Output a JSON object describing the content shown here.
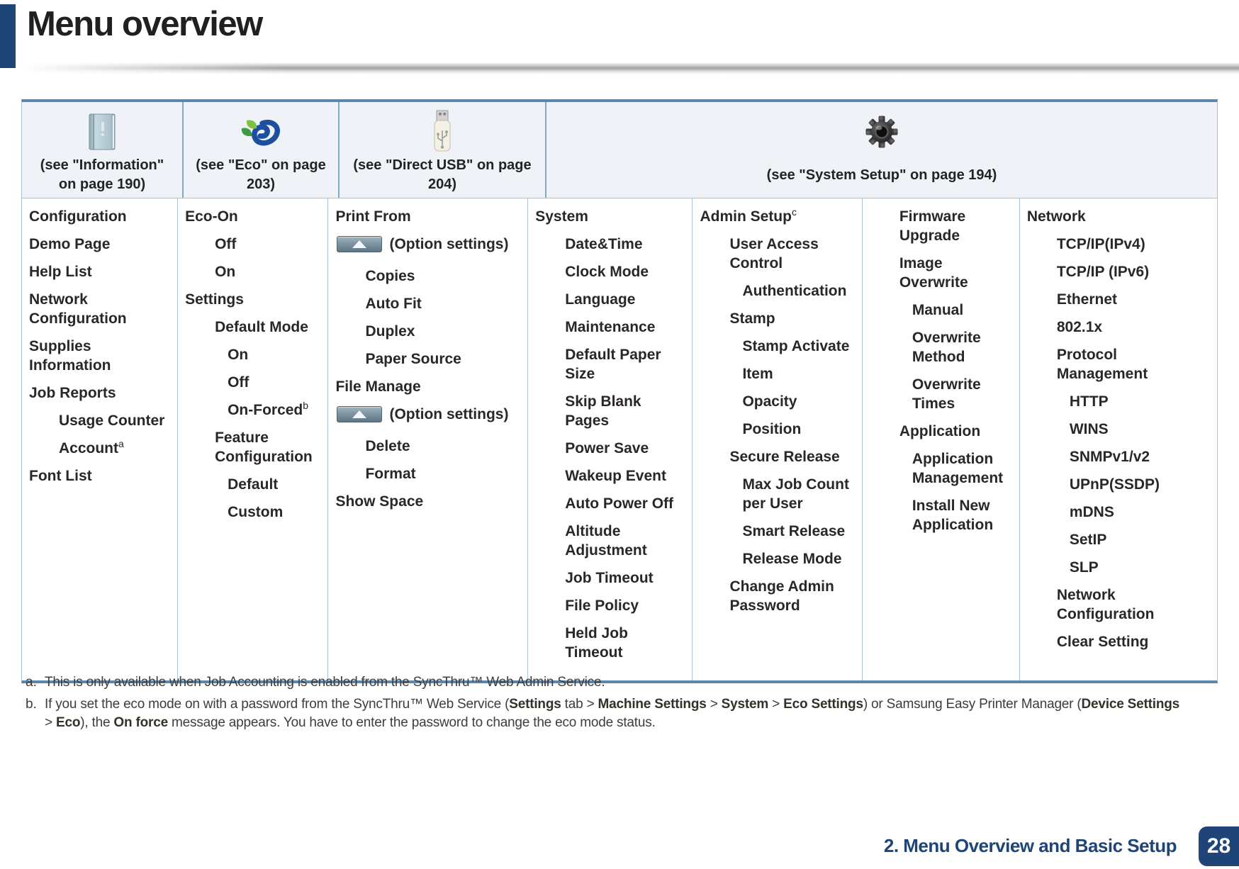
{
  "page": {
    "title": "Menu overview",
    "footer": {
      "chapter_label": "2. Menu Overview and Basic Setup",
      "page_number": "28"
    },
    "colors": {
      "accent_navy": "#1e4478",
      "table_border_blue": "#5b87ad",
      "divider_blue": "#aac3d6",
      "header_bg": "#eff3f7",
      "eco_green": "#7cc242",
      "eco_blue": "#1d4f9e"
    }
  },
  "table": {
    "headers": [
      {
        "icon": "information-icon",
        "caption": "(see \"Information\" on page 190)"
      },
      {
        "icon": "eco-icon",
        "caption": "(see \"Eco\" on page 203)"
      },
      {
        "icon": "usb-icon",
        "caption": "(see \"Direct USB\" on page 204)"
      },
      {
        "icon": "system-setup-icon",
        "caption": "(see \"System Setup\" on page 194)"
      }
    ],
    "columns": [
      {
        "name": "information",
        "items": [
          {
            "label": "Configuration",
            "indent": 0
          },
          {
            "label": "Demo Page",
            "indent": 0
          },
          {
            "label": "Help List",
            "indent": 0
          },
          {
            "label": "Network Configuration",
            "indent": 0
          },
          {
            "label": "Supplies Information",
            "indent": 0
          },
          {
            "label": "Job Reports",
            "indent": 0
          },
          {
            "label": "Usage Counter",
            "indent": 1
          },
          {
            "label": "Account",
            "sup": "a",
            "indent": 1
          },
          {
            "label": "Font List",
            "indent": 0
          }
        ]
      },
      {
        "name": "eco",
        "items": [
          {
            "label": "Eco-On",
            "indent": 0
          },
          {
            "label": "Off",
            "indent": 1
          },
          {
            "label": "On",
            "indent": 1
          },
          {
            "label": "Settings",
            "indent": 0
          },
          {
            "label": "Default Mode",
            "indent": 1
          },
          {
            "label": "On",
            "indent": 2
          },
          {
            "label": "Off",
            "indent": 2
          },
          {
            "label": "On-Forced",
            "sup": "b",
            "indent": 2
          },
          {
            "label": "Feature Configuration",
            "indent": 1
          },
          {
            "label": "Default",
            "indent": 2
          },
          {
            "label": "Custom",
            "indent": 2
          }
        ]
      },
      {
        "name": "direct-usb",
        "items": [
          {
            "label": "Print From",
            "indent": 0
          },
          {
            "label": "(Option settings)",
            "indent": 0,
            "option_button": true
          },
          {
            "label": "Copies",
            "indent": 1
          },
          {
            "label": "Auto Fit",
            "indent": 1
          },
          {
            "label": "Duplex",
            "indent": 1
          },
          {
            "label": "Paper Source",
            "indent": 1
          },
          {
            "label": "File Manage",
            "indent": 0
          },
          {
            "label": "(Option settings)",
            "indent": 0,
            "option_button": true
          },
          {
            "label": "Delete",
            "indent": 1
          },
          {
            "label": "Format",
            "indent": 1
          },
          {
            "label": "Show Space",
            "indent": 0
          }
        ]
      },
      {
        "name": "system",
        "items": [
          {
            "label": "System",
            "indent": 0
          },
          {
            "label": "Date&Time",
            "indent": 1
          },
          {
            "label": "Clock Mode",
            "indent": 1
          },
          {
            "label": "Language",
            "indent": 1
          },
          {
            "label": "Maintenance",
            "indent": 1
          },
          {
            "label": "Default Paper Size",
            "indent": 1
          },
          {
            "label": "Skip Blank Pages",
            "indent": 1
          },
          {
            "label": "Power Save",
            "indent": 1
          },
          {
            "label": "Wakeup Event",
            "indent": 1
          },
          {
            "label": "Auto Power Off",
            "indent": 1
          },
          {
            "label": "Altitude Adjustment",
            "indent": 1
          },
          {
            "label": "Job Timeout",
            "indent": 1
          },
          {
            "label": "File Policy",
            "indent": 1
          },
          {
            "label": "Held Job Timeout",
            "indent": 1
          }
        ]
      },
      {
        "name": "admin-setup",
        "items": [
          {
            "label": "Admin Setup",
            "sup": "c",
            "indent": 0
          },
          {
            "label": "User Access Control",
            "indent": 1
          },
          {
            "label": "Authentication",
            "indent": 2
          },
          {
            "label": "Stamp",
            "indent": 1
          },
          {
            "label": "Stamp Activate",
            "indent": 2
          },
          {
            "label": "Item",
            "indent": 2
          },
          {
            "label": "Opacity",
            "indent": 2
          },
          {
            "label": "Position",
            "indent": 2
          },
          {
            "label": "Secure Release",
            "indent": 1
          },
          {
            "label": "Max Job Count per User",
            "indent": 2
          },
          {
            "label": "Smart Release",
            "indent": 2
          },
          {
            "label": "Release Mode",
            "indent": 2
          },
          {
            "label": "Change Admin Password",
            "indent": 1
          }
        ]
      },
      {
        "name": "admin-setup-continued",
        "items": [
          {
            "label": "Firmware Upgrade",
            "indent": 1
          },
          {
            "label": "Image Overwrite",
            "indent": 1
          },
          {
            "label": "Manual",
            "indent": 2
          },
          {
            "label": "Overwrite Method",
            "indent": 2
          },
          {
            "label": "Overwrite Times",
            "indent": 2
          },
          {
            "label": "Application",
            "indent": 1
          },
          {
            "label": "Application Management",
            "indent": 2
          },
          {
            "label": "Install New Application",
            "indent": 2
          }
        ]
      },
      {
        "name": "network",
        "items": [
          {
            "label": "Network",
            "indent": 0
          },
          {
            "label": "TCP/IP(IPv4)",
            "indent": 1
          },
          {
            "label": "TCP/IP (IPv6)",
            "indent": 1
          },
          {
            "label": "Ethernet",
            "indent": 1
          },
          {
            "label": "802.1x",
            "indent": 1
          },
          {
            "label": "Protocol Management",
            "indent": 1
          },
          {
            "label": "HTTP",
            "indent": 2
          },
          {
            "label": "WINS",
            "indent": 2
          },
          {
            "label": "SNMPv1/v2",
            "indent": 2
          },
          {
            "label": "UPnP(SSDP)",
            "indent": 2
          },
          {
            "label": "mDNS",
            "indent": 2
          },
          {
            "label": "SetIP",
            "indent": 2
          },
          {
            "label": "SLP",
            "indent": 2
          },
          {
            "label": "Network Configuration",
            "indent": 1
          },
          {
            "label": "Clear Setting",
            "indent": 1
          }
        ]
      }
    ]
  },
  "footnotes": [
    {
      "marker": "a.",
      "segments": [
        {
          "text": "This is only available when Job Accounting is enabled from the SyncThru™ Web Admin Service."
        }
      ]
    },
    {
      "marker": "b.",
      "segments": [
        {
          "text": "If you set the eco mode on with a password from the SyncThru™ Web Service ("
        },
        {
          "text": "Settings",
          "bold": true
        },
        {
          "text": " tab > "
        },
        {
          "text": "Machine Settings",
          "bold": true
        },
        {
          "text": " > "
        },
        {
          "text": "System",
          "bold": true
        },
        {
          "text": " > "
        },
        {
          "text": "Eco Settings",
          "bold": true
        },
        {
          "text": ") or Samsung Easy Printer Manager ("
        },
        {
          "text": "Device Settings",
          "bold": true
        },
        {
          "break": true
        },
        {
          "text": "> "
        },
        {
          "text": "Eco",
          "bold": true
        },
        {
          "text": "), the "
        },
        {
          "text": "On force",
          "bold": true
        },
        {
          "text": " message appears. You have to enter the password to change the eco mode status."
        }
      ]
    }
  ]
}
